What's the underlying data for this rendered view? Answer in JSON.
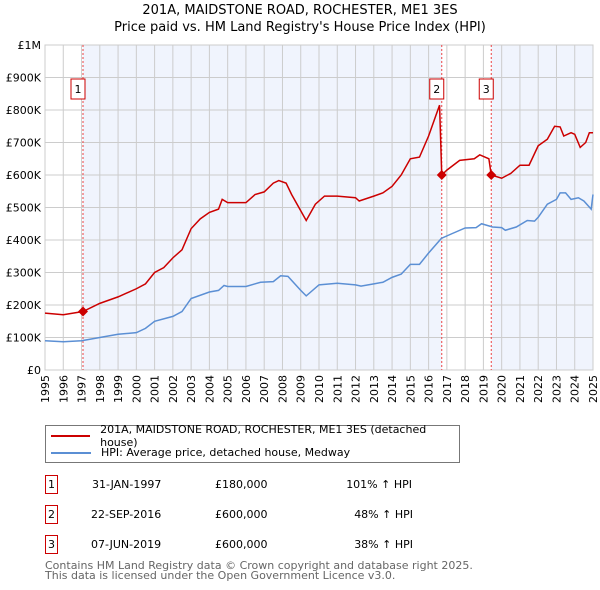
{
  "chart_data": {
    "type": "line",
    "title": "201A, MAIDSTONE ROAD, ROCHESTER, ME1 3ES",
    "subtitle": "Price paid vs. HM Land Registry's House Price Index (HPI)",
    "xlabel": "",
    "ylabel": "",
    "xlim": [
      1995,
      2025
    ],
    "ylim": [
      0,
      1000000
    ],
    "y_ticks": [
      {
        "v": 0,
        "label": "£0"
      },
      {
        "v": 100000,
        "label": "£100K"
      },
      {
        "v": 200000,
        "label": "£200K"
      },
      {
        "v": 300000,
        "label": "£300K"
      },
      {
        "v": 400000,
        "label": "£400K"
      },
      {
        "v": 500000,
        "label": "£500K"
      },
      {
        "v": 600000,
        "label": "£600K"
      },
      {
        "v": 700000,
        "label": "£700K"
      },
      {
        "v": 800000,
        "label": "£800K"
      },
      {
        "v": 900000,
        "label": "£900K"
      },
      {
        "v": 1000000,
        "label": "£1M"
      }
    ],
    "x_ticks": [
      "1995",
      "1996",
      "1997",
      "1998",
      "1999",
      "2000",
      "2001",
      "2002",
      "2003",
      "2004",
      "2005",
      "2006",
      "2007",
      "2008",
      "2009",
      "2010",
      "2011",
      "2012",
      "2013",
      "2014",
      "2015",
      "2016",
      "2017",
      "2018",
      "2019",
      "2020",
      "2021",
      "2022",
      "2023",
      "2024",
      "2025"
    ],
    "grid": true,
    "series": [
      {
        "name": "201A, MAIDSTONE ROAD, ROCHESTER, ME1 3ES (detached house)",
        "color": "#cc0000",
        "x": [
          1995,
          1996,
          1997.08,
          1998,
          1999,
          2000,
          2000.5,
          2001,
          2001.5,
          2002,
          2002.5,
          2003,
          2003.5,
          2004,
          2004.5,
          2004.7,
          2005,
          2006,
          2006.5,
          2007,
          2007.5,
          2007.8,
          2008.2,
          2008.5,
          2009,
          2009.3,
          2009.8,
          2010.3,
          2011,
          2012,
          2012.2,
          2013,
          2013.5,
          2014,
          2014.5,
          2015,
          2015.5,
          2016,
          2016.6,
          2016.72,
          2017,
          2017.7,
          2018.5,
          2018.8,
          2019.3,
          2019.43,
          2020,
          2020.5,
          2021,
          2021.5,
          2022,
          2022.5,
          2022.9,
          2023.2,
          2023.4,
          2023.8,
          2024,
          2024.3,
          2024.6,
          2024.8,
          2025
        ],
        "y": [
          175000,
          170000,
          180000,
          205000,
          225000,
          250000,
          265000,
          300000,
          315000,
          345000,
          370000,
          435000,
          465000,
          485000,
          495000,
          525000,
          515000,
          515000,
          540000,
          548000,
          575000,
          583000,
          575000,
          540000,
          490000,
          460000,
          510000,
          535000,
          535000,
          530000,
          520000,
          535000,
          545000,
          565000,
          600000,
          650000,
          655000,
          720000,
          815000,
          600000,
          615000,
          645000,
          650000,
          662000,
          650000,
          600000,
          590000,
          605000,
          630000,
          630000,
          690000,
          710000,
          750000,
          748000,
          720000,
          730000,
          725000,
          685000,
          700000,
          730000,
          730000
        ]
      },
      {
        "name": "HPI: Average price, detached house, Medway",
        "color": "#5b8fd4",
        "x": [
          1995,
          1996,
          1997,
          1998,
          1999,
          2000,
          2000.5,
          2001,
          2002,
          2002.5,
          2003,
          2004,
          2004.5,
          2004.8,
          2005,
          2006,
          2006.8,
          2007.5,
          2007.9,
          2008.3,
          2009,
          2009.3,
          2010,
          2011,
          2012,
          2012.3,
          2013,
          2013.5,
          2014,
          2014.5,
          2015,
          2015.5,
          2016,
          2016.7,
          2017.3,
          2018,
          2018.6,
          2018.9,
          2019.5,
          2020,
          2020.2,
          2020.8,
          2021.4,
          2021.8,
          2022,
          2022.5,
          2023,
          2023.2,
          2023.5,
          2023.8,
          2024.2,
          2024.5,
          2024.9,
          2025
        ],
        "y": [
          90000,
          87000,
          90000,
          100000,
          110000,
          115000,
          128000,
          150000,
          165000,
          180000,
          220000,
          240000,
          245000,
          260000,
          257000,
          257000,
          270000,
          272000,
          290000,
          288000,
          245000,
          228000,
          262000,
          267000,
          262000,
          258000,
          265000,
          270000,
          285000,
          295000,
          325000,
          325000,
          360000,
          405000,
          420000,
          437000,
          438000,
          450000,
          440000,
          438000,
          430000,
          440000,
          460000,
          458000,
          470000,
          510000,
          525000,
          545000,
          545000,
          525000,
          530000,
          520000,
          495000,
          540000
        ]
      }
    ],
    "sales": [
      {
        "id": "1",
        "year": 1997.08,
        "price": 180000,
        "date": "31-JAN-1997",
        "price_label": "£180,000",
        "hpi": "101% ↑ HPI"
      },
      {
        "id": "2",
        "year": 2016.72,
        "price": 600000,
        "date": "22-SEP-2016",
        "price_label": "£600,000",
        "hpi": "48% ↑ HPI"
      },
      {
        "id": "3",
        "year": 2019.43,
        "price": 600000,
        "date": "07-JUN-2019",
        "price_label": "£600,000",
        "hpi": "38% ↑ HPI"
      }
    ],
    "legend_position": "below"
  },
  "footer": {
    "line1": "Contains HM Land Registry data © Crown copyright and database right 2025.",
    "line2": "This data is licensed under the Open Government Licence v3.0."
  }
}
